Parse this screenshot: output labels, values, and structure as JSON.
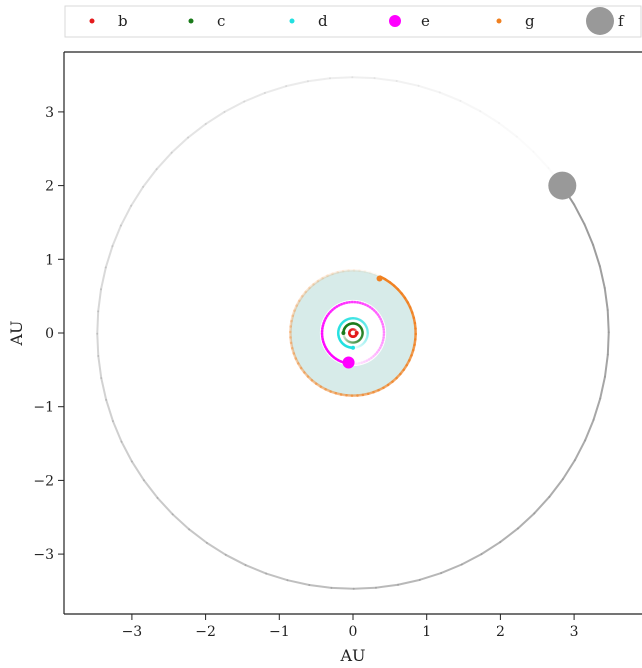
{
  "chart_data": {
    "type": "scatter",
    "title": "",
    "xlabel": "AU",
    "ylabel": "AU",
    "xlim": [
      -3.8,
      3.8
    ],
    "ylim": [
      -3.8,
      3.8
    ],
    "xticks": [
      -3,
      -2,
      -1,
      0,
      1,
      2,
      3
    ],
    "yticks": [
      -3,
      -2,
      -1,
      0,
      1,
      2,
      3
    ],
    "grid": false,
    "legend_position": "top",
    "habitable_zone": {
      "inner": 0.45,
      "outer": 0.85,
      "color": "#d7ebe9"
    },
    "planets": [
      {
        "name": "b",
        "color": "#e41a1c",
        "orbit_radius": 0.05,
        "x": 0.05,
        "y": 0.0,
        "size": 2
      },
      {
        "name": "c",
        "color": "#1a7a1a",
        "orbit_radius": 0.13,
        "x": -0.13,
        "y": 0.0,
        "size": 2
      },
      {
        "name": "d",
        "color": "#22e0e0",
        "orbit_radius": 0.2,
        "x": 0.0,
        "y": -0.2,
        "size": 2
      },
      {
        "name": "e",
        "color": "#ff00ff",
        "orbit_radius": 0.42,
        "x": -0.06,
        "y": -0.4,
        "size": 6
      },
      {
        "name": "g",
        "color": "#f08020",
        "orbit_radius": 0.85,
        "x": 0.36,
        "y": 0.74,
        "size": 3
      },
      {
        "name": "f",
        "color": "#999999",
        "orbit_radius": 3.47,
        "x": 2.84,
        "y": 2.0,
        "size": 14
      }
    ]
  }
}
